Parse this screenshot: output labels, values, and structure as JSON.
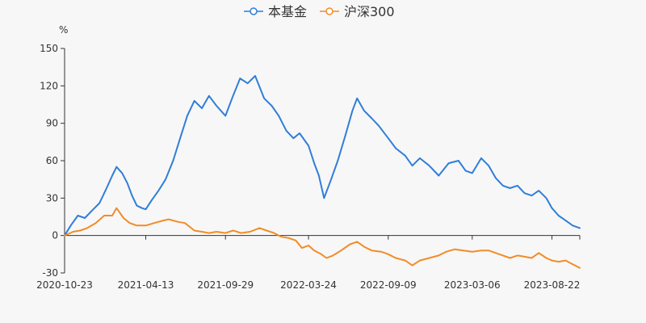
{
  "chart_data": {
    "type": "line",
    "unit": "%",
    "ylim": [
      -30,
      150
    ],
    "yticks": [
      -30,
      0,
      30,
      60,
      90,
      120,
      150
    ],
    "xlim": [
      "2020-10-23",
      "2023-10-20"
    ],
    "xticks": [
      "2020-10-23",
      "2021-04-13",
      "2021-09-29",
      "2022-03-24",
      "2022-09-09",
      "2023-03-06",
      "2023-08-22"
    ],
    "grid": false,
    "legend": "top-center",
    "series": [
      {
        "name": "本基金",
        "color": "#2f7ed8",
        "points": [
          [
            "2020-10-23",
            0
          ],
          [
            "2020-11-05",
            8
          ],
          [
            "2020-11-20",
            16
          ],
          [
            "2020-12-05",
            14
          ],
          [
            "2020-12-20",
            20
          ],
          [
            "2021-01-05",
            26
          ],
          [
            "2021-01-20",
            38
          ],
          [
            "2021-02-01",
            48
          ],
          [
            "2021-02-10",
            55
          ],
          [
            "2021-02-22",
            50
          ],
          [
            "2021-03-05",
            42
          ],
          [
            "2021-03-15",
            32
          ],
          [
            "2021-03-25",
            24
          ],
          [
            "2021-04-05",
            22
          ],
          [
            "2021-04-13",
            21
          ],
          [
            "2021-04-25",
            28
          ],
          [
            "2021-05-10",
            36
          ],
          [
            "2021-05-25",
            45
          ],
          [
            "2021-06-10",
            60
          ],
          [
            "2021-06-25",
            78
          ],
          [
            "2021-07-10",
            96
          ],
          [
            "2021-07-25",
            108
          ],
          [
            "2021-08-10",
            102
          ],
          [
            "2021-08-25",
            112
          ],
          [
            "2021-09-10",
            104
          ],
          [
            "2021-09-29",
            96
          ],
          [
            "2021-10-15",
            112
          ],
          [
            "2021-10-30",
            126
          ],
          [
            "2021-11-15",
            122
          ],
          [
            "2021-12-01",
            128
          ],
          [
            "2021-12-20",
            110
          ],
          [
            "2022-01-05",
            104
          ],
          [
            "2022-01-20",
            96
          ],
          [
            "2022-02-05",
            84
          ],
          [
            "2022-02-20",
            78
          ],
          [
            "2022-03-05",
            82
          ],
          [
            "2022-03-24",
            72
          ],
          [
            "2022-04-05",
            58
          ],
          [
            "2022-04-15",
            48
          ],
          [
            "2022-04-26",
            30
          ],
          [
            "2022-05-10",
            44
          ],
          [
            "2022-05-25",
            60
          ],
          [
            "2022-06-10",
            80
          ],
          [
            "2022-06-25",
            100
          ],
          [
            "2022-07-05",
            110
          ],
          [
            "2022-07-20",
            100
          ],
          [
            "2022-08-05",
            94
          ],
          [
            "2022-08-20",
            88
          ],
          [
            "2022-09-09",
            78
          ],
          [
            "2022-09-25",
            70
          ],
          [
            "2022-10-15",
            64
          ],
          [
            "2022-10-30",
            56
          ],
          [
            "2022-11-15",
            62
          ],
          [
            "2022-12-05",
            56
          ],
          [
            "2022-12-25",
            48
          ],
          [
            "2023-01-15",
            58
          ],
          [
            "2023-02-05",
            60
          ],
          [
            "2023-02-20",
            52
          ],
          [
            "2023-03-06",
            50
          ],
          [
            "2023-03-25",
            62
          ],
          [
            "2023-04-10",
            56
          ],
          [
            "2023-04-25",
            46
          ],
          [
            "2023-05-10",
            40
          ],
          [
            "2023-05-25",
            38
          ],
          [
            "2023-06-10",
            40
          ],
          [
            "2023-06-25",
            34
          ],
          [
            "2023-07-10",
            32
          ],
          [
            "2023-07-25",
            36
          ],
          [
            "2023-08-10",
            30
          ],
          [
            "2023-08-22",
            22
          ],
          [
            "2023-09-05",
            16
          ],
          [
            "2023-09-20",
            12
          ],
          [
            "2023-10-05",
            8
          ],
          [
            "2023-10-20",
            6
          ]
        ]
      },
      {
        "name": "沪深300",
        "color": "#f28c28",
        "points": [
          [
            "2020-10-23",
            0
          ],
          [
            "2020-11-10",
            3
          ],
          [
            "2020-11-25",
            4
          ],
          [
            "2020-12-10",
            6
          ],
          [
            "2020-12-28",
            10
          ],
          [
            "2021-01-15",
            16
          ],
          [
            "2021-02-01",
            16
          ],
          [
            "2021-02-10",
            22
          ],
          [
            "2021-02-25",
            14
          ],
          [
            "2021-03-10",
            10
          ],
          [
            "2021-03-25",
            8
          ],
          [
            "2021-04-13",
            8
          ],
          [
            "2021-05-01",
            10
          ],
          [
            "2021-05-20",
            12
          ],
          [
            "2021-06-01",
            13
          ],
          [
            "2021-06-20",
            11
          ],
          [
            "2021-07-05",
            10
          ],
          [
            "2021-07-25",
            4
          ],
          [
            "2021-08-10",
            3
          ],
          [
            "2021-08-25",
            2
          ],
          [
            "2021-09-10",
            3
          ],
          [
            "2021-09-29",
            2
          ],
          [
            "2021-10-15",
            4
          ],
          [
            "2021-11-01",
            2
          ],
          [
            "2021-11-20",
            3
          ],
          [
            "2021-12-10",
            6
          ],
          [
            "2021-12-25",
            4
          ],
          [
            "2022-01-10",
            2
          ],
          [
            "2022-01-25",
            -1
          ],
          [
            "2022-02-10",
            -2
          ],
          [
            "2022-02-25",
            -4
          ],
          [
            "2022-03-10",
            -10
          ],
          [
            "2022-03-24",
            -8
          ],
          [
            "2022-04-05",
            -12
          ],
          [
            "2022-04-20",
            -15
          ],
          [
            "2022-05-01",
            -18
          ],
          [
            "2022-05-15",
            -16
          ],
          [
            "2022-06-01",
            -12
          ],
          [
            "2022-06-20",
            -7
          ],
          [
            "2022-07-05",
            -5
          ],
          [
            "2022-07-20",
            -9
          ],
          [
            "2022-08-05",
            -12
          ],
          [
            "2022-08-25",
            -13
          ],
          [
            "2022-09-09",
            -15
          ],
          [
            "2022-09-25",
            -18
          ],
          [
            "2022-10-15",
            -20
          ],
          [
            "2022-10-30",
            -24
          ],
          [
            "2022-11-15",
            -20
          ],
          [
            "2022-12-05",
            -18
          ],
          [
            "2022-12-25",
            -16
          ],
          [
            "2023-01-10",
            -13
          ],
          [
            "2023-01-28",
            -11
          ],
          [
            "2023-02-15",
            -12
          ],
          [
            "2023-03-06",
            -13
          ],
          [
            "2023-03-25",
            -12
          ],
          [
            "2023-04-10",
            -12
          ],
          [
            "2023-04-25",
            -14
          ],
          [
            "2023-05-10",
            -16
          ],
          [
            "2023-05-25",
            -18
          ],
          [
            "2023-06-10",
            -16
          ],
          [
            "2023-06-25",
            -17
          ],
          [
            "2023-07-10",
            -18
          ],
          [
            "2023-07-25",
            -14
          ],
          [
            "2023-08-10",
            -18
          ],
          [
            "2023-08-22",
            -20
          ],
          [
            "2023-09-05",
            -21
          ],
          [
            "2023-09-20",
            -20
          ],
          [
            "2023-10-05",
            -23
          ],
          [
            "2023-10-20",
            -26
          ]
        ]
      }
    ]
  }
}
